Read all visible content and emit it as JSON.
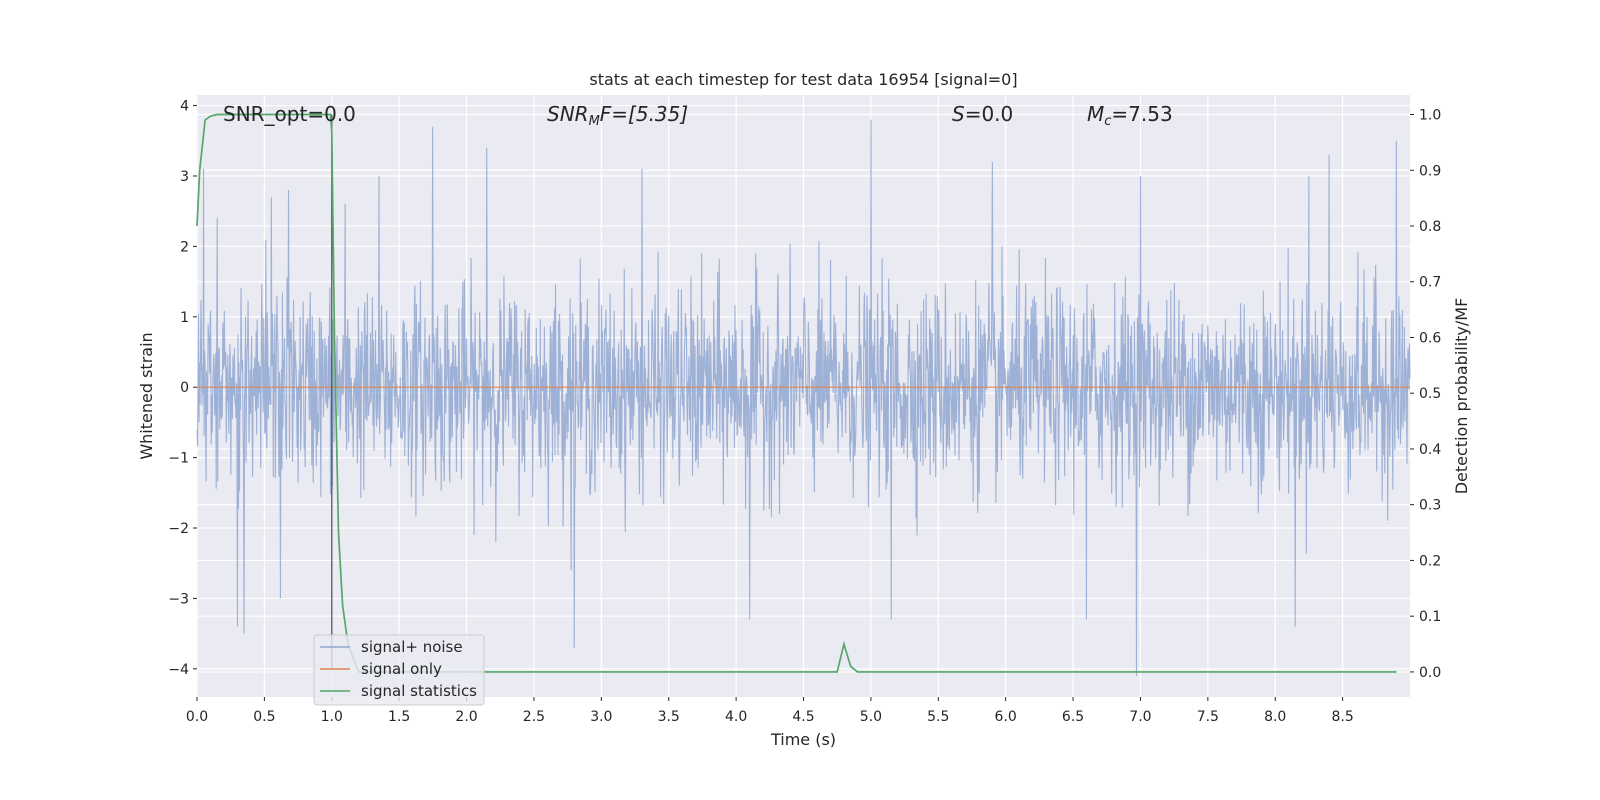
{
  "chart_data": {
    "type": "line",
    "title": "stats at each timestep for test data 16954 [signal=0]",
    "xlabel": "Time (s)",
    "ylabel": "Whitened strain",
    "y2label": "Detection probability/MF",
    "xlim": [
      0.0,
      9.0
    ],
    "ylim": [
      -4.4,
      4.15
    ],
    "y2lim": [
      -0.045,
      1.035
    ],
    "xticks": [
      "0.0",
      "0.5",
      "1.0",
      "1.5",
      "2.0",
      "2.5",
      "3.0",
      "3.5",
      "4.0",
      "4.5",
      "5.0",
      "5.5",
      "6.0",
      "6.5",
      "7.0",
      "7.5",
      "8.0",
      "8.5"
    ],
    "yticks": [
      "4",
      "3",
      "2",
      "1",
      "0",
      "−1",
      "−2",
      "−3",
      "−4"
    ],
    "y2ticks": [
      "1.0",
      "0.9",
      "0.8",
      "0.7",
      "0.6",
      "0.5",
      "0.4",
      "0.3",
      "0.2",
      "0.1",
      "0.0"
    ],
    "grid": true,
    "legend_position": "lower-left",
    "annotations": {
      "snr_opt": "SNR_opt=0.0",
      "snr_mf_main": "SNR",
      "snr_mf_sub": "M",
      "snr_mf_rest": "F=[5.35]",
      "s_italic": "S",
      "s_rest": "=0.0",
      "mc_main": "M",
      "mc_sub": "c",
      "mc_rest": "=7.53"
    },
    "marker_line_x": 1.0,
    "series": [
      {
        "name": "signal+ noise",
        "color": "#8fa6d0",
        "noise_std": 0.7,
        "peaks": [
          {
            "x": 0.05,
            "y": 3.1
          },
          {
            "x": 0.15,
            "y": 2.4
          },
          {
            "x": 0.3,
            "y": -3.4
          },
          {
            "x": 0.35,
            "y": -3.5
          },
          {
            "x": 0.55,
            "y": 2.7
          },
          {
            "x": 0.62,
            "y": -3.0
          },
          {
            "x": 0.68,
            "y": 2.8
          },
          {
            "x": 1.1,
            "y": 2.6
          },
          {
            "x": 1.35,
            "y": 3.0
          },
          {
            "x": 1.75,
            "y": 3.7
          },
          {
            "x": 2.15,
            "y": 3.4
          },
          {
            "x": 2.8,
            "y": -3.7
          },
          {
            "x": 3.3,
            "y": 3.1
          },
          {
            "x": 4.1,
            "y": -3.3
          },
          {
            "x": 5.0,
            "y": 3.8
          },
          {
            "x": 5.15,
            "y": -3.3
          },
          {
            "x": 5.9,
            "y": 3.2
          },
          {
            "x": 6.6,
            "y": -3.3
          },
          {
            "x": 6.97,
            "y": -4.1
          },
          {
            "x": 7.0,
            "y": 3.0
          },
          {
            "x": 8.15,
            "y": -3.4
          },
          {
            "x": 8.25,
            "y": 3.0
          },
          {
            "x": 8.4,
            "y": 3.3
          },
          {
            "x": 8.9,
            "y": 3.5
          }
        ]
      },
      {
        "name": "signal only",
        "color": "#dd8452",
        "x": [
          0.0,
          9.0
        ],
        "y": [
          0.0,
          0.0
        ]
      },
      {
        "name": "signal statistics",
        "color": "#55a868",
        "axis": "right",
        "x": [
          0.0,
          0.02,
          0.06,
          0.1,
          0.15,
          0.3,
          0.5,
          0.7,
          0.9,
          0.99,
          1.0,
          1.02,
          1.05,
          1.08,
          1.12,
          1.2,
          1.3,
          2.0,
          3.0,
          4.0,
          4.5,
          4.75,
          4.8,
          4.85,
          4.9,
          4.95,
          5.5,
          6.0,
          7.0,
          8.0,
          8.9
        ],
        "y": [
          0.8,
          0.9,
          0.99,
          0.997,
          1.0,
          1.0,
          1.0,
          1.0,
          1.0,
          1.0,
          0.97,
          0.6,
          0.25,
          0.12,
          0.05,
          0.0,
          0.0,
          0.0,
          0.0,
          0.0,
          0.0,
          0.0,
          0.05,
          0.01,
          0.0,
          0.0,
          0.0,
          0.0,
          0.0,
          0.0,
          0.0
        ]
      }
    ]
  }
}
